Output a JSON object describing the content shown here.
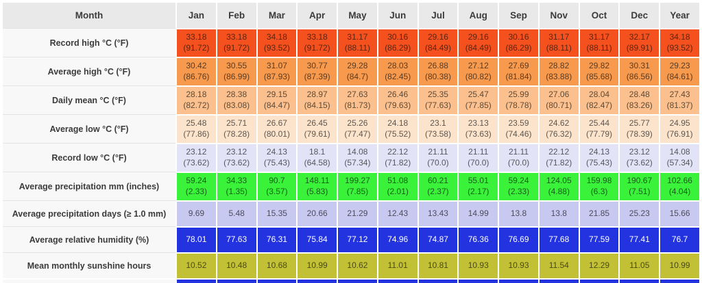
{
  "table": {
    "header": {
      "label": "Month",
      "months": [
        "Jan",
        "Feb",
        "Mar",
        "Apr",
        "May",
        "Jun",
        "Jul",
        "Aug",
        "Sep",
        "Nov",
        "Oct",
        "Dec",
        "Year"
      ],
      "bg": "#e9e9e9"
    },
    "rows": [
      {
        "label": "Record high °C (°F)",
        "bg": "#f4511e",
        "fg": "#5c2410",
        "values": [
          "33.18",
          "33.18",
          "34.18",
          "33.18",
          "31.17",
          "30.16",
          "29.16",
          "29.16",
          "30.16",
          "31.17",
          "31.17",
          "32.17",
          "34.18"
        ],
        "sub": [
          "(91.72)",
          "(91.72)",
          "(93.52)",
          "(91.72)",
          "(88.11)",
          "(86.29)",
          "(84.49)",
          "(84.49)",
          "(86.29)",
          "(88.11)",
          "(88.11)",
          "(89.91)",
          "(93.52)"
        ]
      },
      {
        "label": "Average high °C (°F)",
        "bg": "#f79a4e",
        "fg": "#5a3a20",
        "values": [
          "30.42",
          "30.55",
          "31.07",
          "30.77",
          "29.28",
          "28.03",
          "26.88",
          "27.12",
          "27.69",
          "28.82",
          "29.82",
          "30.31",
          "29.23"
        ],
        "sub": [
          "(86.76)",
          "(86.99)",
          "(87.93)",
          "(87.39)",
          "(84.7)",
          "(82.45)",
          "(80.38)",
          "(80.82)",
          "(81.84)",
          "(83.88)",
          "(85.68)",
          "(86.56)",
          "(84.61)"
        ]
      },
      {
        "label": "Daily mean °C (°F)",
        "bg": "#fbc08d",
        "fg": "#5d4936",
        "values": [
          "28.18",
          "28.38",
          "29.15",
          "28.97",
          "27.63",
          "26.46",
          "25.35",
          "25.47",
          "25.99",
          "27.06",
          "28.04",
          "28.48",
          "27.43"
        ],
        "sub": [
          "(82.72)",
          "(83.08)",
          "(84.47)",
          "(84.15)",
          "(81.73)",
          "(79.63)",
          "(77.63)",
          "(77.85)",
          "(78.78)",
          "(80.71)",
          "(82.47)",
          "(83.26)",
          "(81.37)"
        ]
      },
      {
        "label": "Average low °C (°F)",
        "bg": "#fce3cb",
        "fg": "#5e564e",
        "values": [
          "25.48",
          "25.71",
          "26.67",
          "26.45",
          "25.26",
          "24.18",
          "23.1",
          "23.13",
          "23.59",
          "24.62",
          "25.44",
          "25.77",
          "24.95"
        ],
        "sub": [
          "(77.86)",
          "(78.28)",
          "(80.01)",
          "(79.61)",
          "(77.47)",
          "(75.52)",
          "(73.58)",
          "(73.63)",
          "(74.46)",
          "(76.32)",
          "(77.79)",
          "(78.39)",
          "(76.91)"
        ]
      },
      {
        "label": "Record low °C (°F)",
        "bg": "#e2e3f6",
        "fg": "#55565d",
        "values": [
          "23.12",
          "23.12",
          "24.13",
          "18.1",
          "14.08",
          "22.12",
          "21.11",
          "21.11",
          "21.11",
          "22.12",
          "24.13",
          "23.12",
          "14.08"
        ],
        "sub": [
          "(73.62)",
          "(73.62)",
          "(75.43)",
          "(64.58)",
          "(57.34)",
          "(71.82)",
          "(70.0)",
          "(70.0)",
          "(70.0)",
          "(71.82)",
          "(75.43)",
          "(73.62)",
          "(57.34)"
        ]
      },
      {
        "label": "Average precipitation mm (inches)",
        "bg": "#3bf23b",
        "fg": "#175c17",
        "values": [
          "59.24",
          "34.33",
          "90.7",
          "148.11",
          "199.27",
          "51.08",
          "60.21",
          "55.01",
          "59.24",
          "124.05",
          "159.98",
          "190.67",
          "102.66"
        ],
        "sub": [
          "(2.33)",
          "(1.35)",
          "(3.57)",
          "(5.83)",
          "(7.85)",
          "(2.01)",
          "(2.37)",
          "(2.17)",
          "(2.33)",
          "(4.88)",
          "(6.3)",
          "(7.51)",
          "(4.04)"
        ]
      },
      {
        "label": "Average precipitation days (≥ 1.0 mm)",
        "bg": "#c7c9f1",
        "fg": "#4b4c5b",
        "values": [
          "9.69",
          "5.48",
          "15.35",
          "20.66",
          "21.29",
          "12.43",
          "13.43",
          "14.99",
          "13.8",
          "13.8",
          "21.85",
          "25.23",
          "15.66"
        ]
      },
      {
        "label": "Average relative humidity (%)",
        "bg": "#2433e0",
        "fg": "#ffffff",
        "values": [
          "78.01",
          "77.63",
          "76.31",
          "75.84",
          "77.12",
          "74.96",
          "74.87",
          "76.36",
          "76.69",
          "77.68",
          "77.59",
          "77.41",
          "76.7"
        ]
      },
      {
        "label": "Mean monthly sunshine hours",
        "bg": "#c2c135",
        "fg": "#4a4914",
        "values": [
          "10.52",
          "10.48",
          "10.68",
          "10.99",
          "10.62",
          "11.01",
          "10.81",
          "10.93",
          "10.93",
          "11.54",
          "12.29",
          "11.05",
          "10.99"
        ]
      }
    ],
    "partial_next_row": {
      "bg": "#2433e0",
      "label_bg": "#f8f8f8"
    }
  }
}
